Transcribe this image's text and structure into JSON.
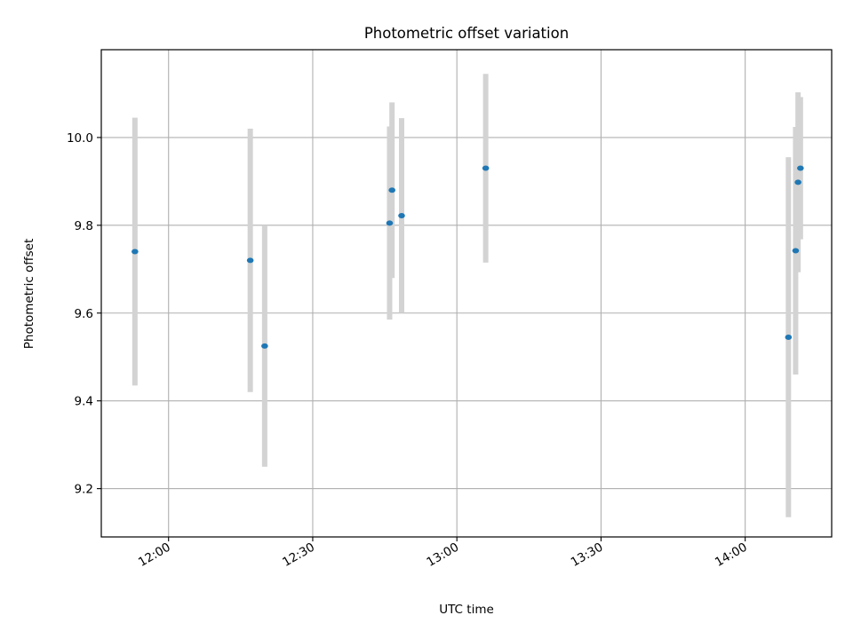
{
  "chart_data": {
    "type": "scatter",
    "title": "Photometric offset variation",
    "xlabel": "UTC time",
    "ylabel": "Photometric offset",
    "x_axis_type": "time",
    "xlim": [
      "11:46",
      "14:18"
    ],
    "ylim": [
      9.09,
      10.2
    ],
    "xticks": [
      "12:00",
      "12:30",
      "13:00",
      "13:30",
      "14:00"
    ],
    "yticks": [
      9.2,
      9.4,
      9.6,
      9.8,
      10.0
    ],
    "ytick_labels": [
      "9.2",
      "9.4",
      "9.6",
      "9.8",
      "10.0"
    ],
    "grid": true,
    "point_color": "#1f77b4",
    "errorbar_color": "#d3d3d3",
    "points": [
      {
        "x": "11:53",
        "y": 9.74,
        "yerr": 0.305
      },
      {
        "x": "12:17",
        "y": 9.72,
        "yerr": 0.3
      },
      {
        "x": "12:20",
        "y": 9.525,
        "yerr": 0.275
      },
      {
        "x": "12:46",
        "y": 9.805,
        "yerr": 0.22
      },
      {
        "x": "12:46.5",
        "y": 9.88,
        "yerr": 0.2
      },
      {
        "x": "12:48.5",
        "y": 9.822,
        "yerr": 0.222
      },
      {
        "x": "13:06",
        "y": 9.93,
        "yerr": 0.215
      },
      {
        "x": "14:09",
        "y": 9.545,
        "yerr": 0.41
      },
      {
        "x": "14:10.5",
        "y": 9.742,
        "yerr": 0.282
      },
      {
        "x": "14:11",
        "y": 9.898,
        "yerr": 0.205
      },
      {
        "x": "14:11.5",
        "y": 9.93,
        "yerr": 0.162
      }
    ]
  }
}
